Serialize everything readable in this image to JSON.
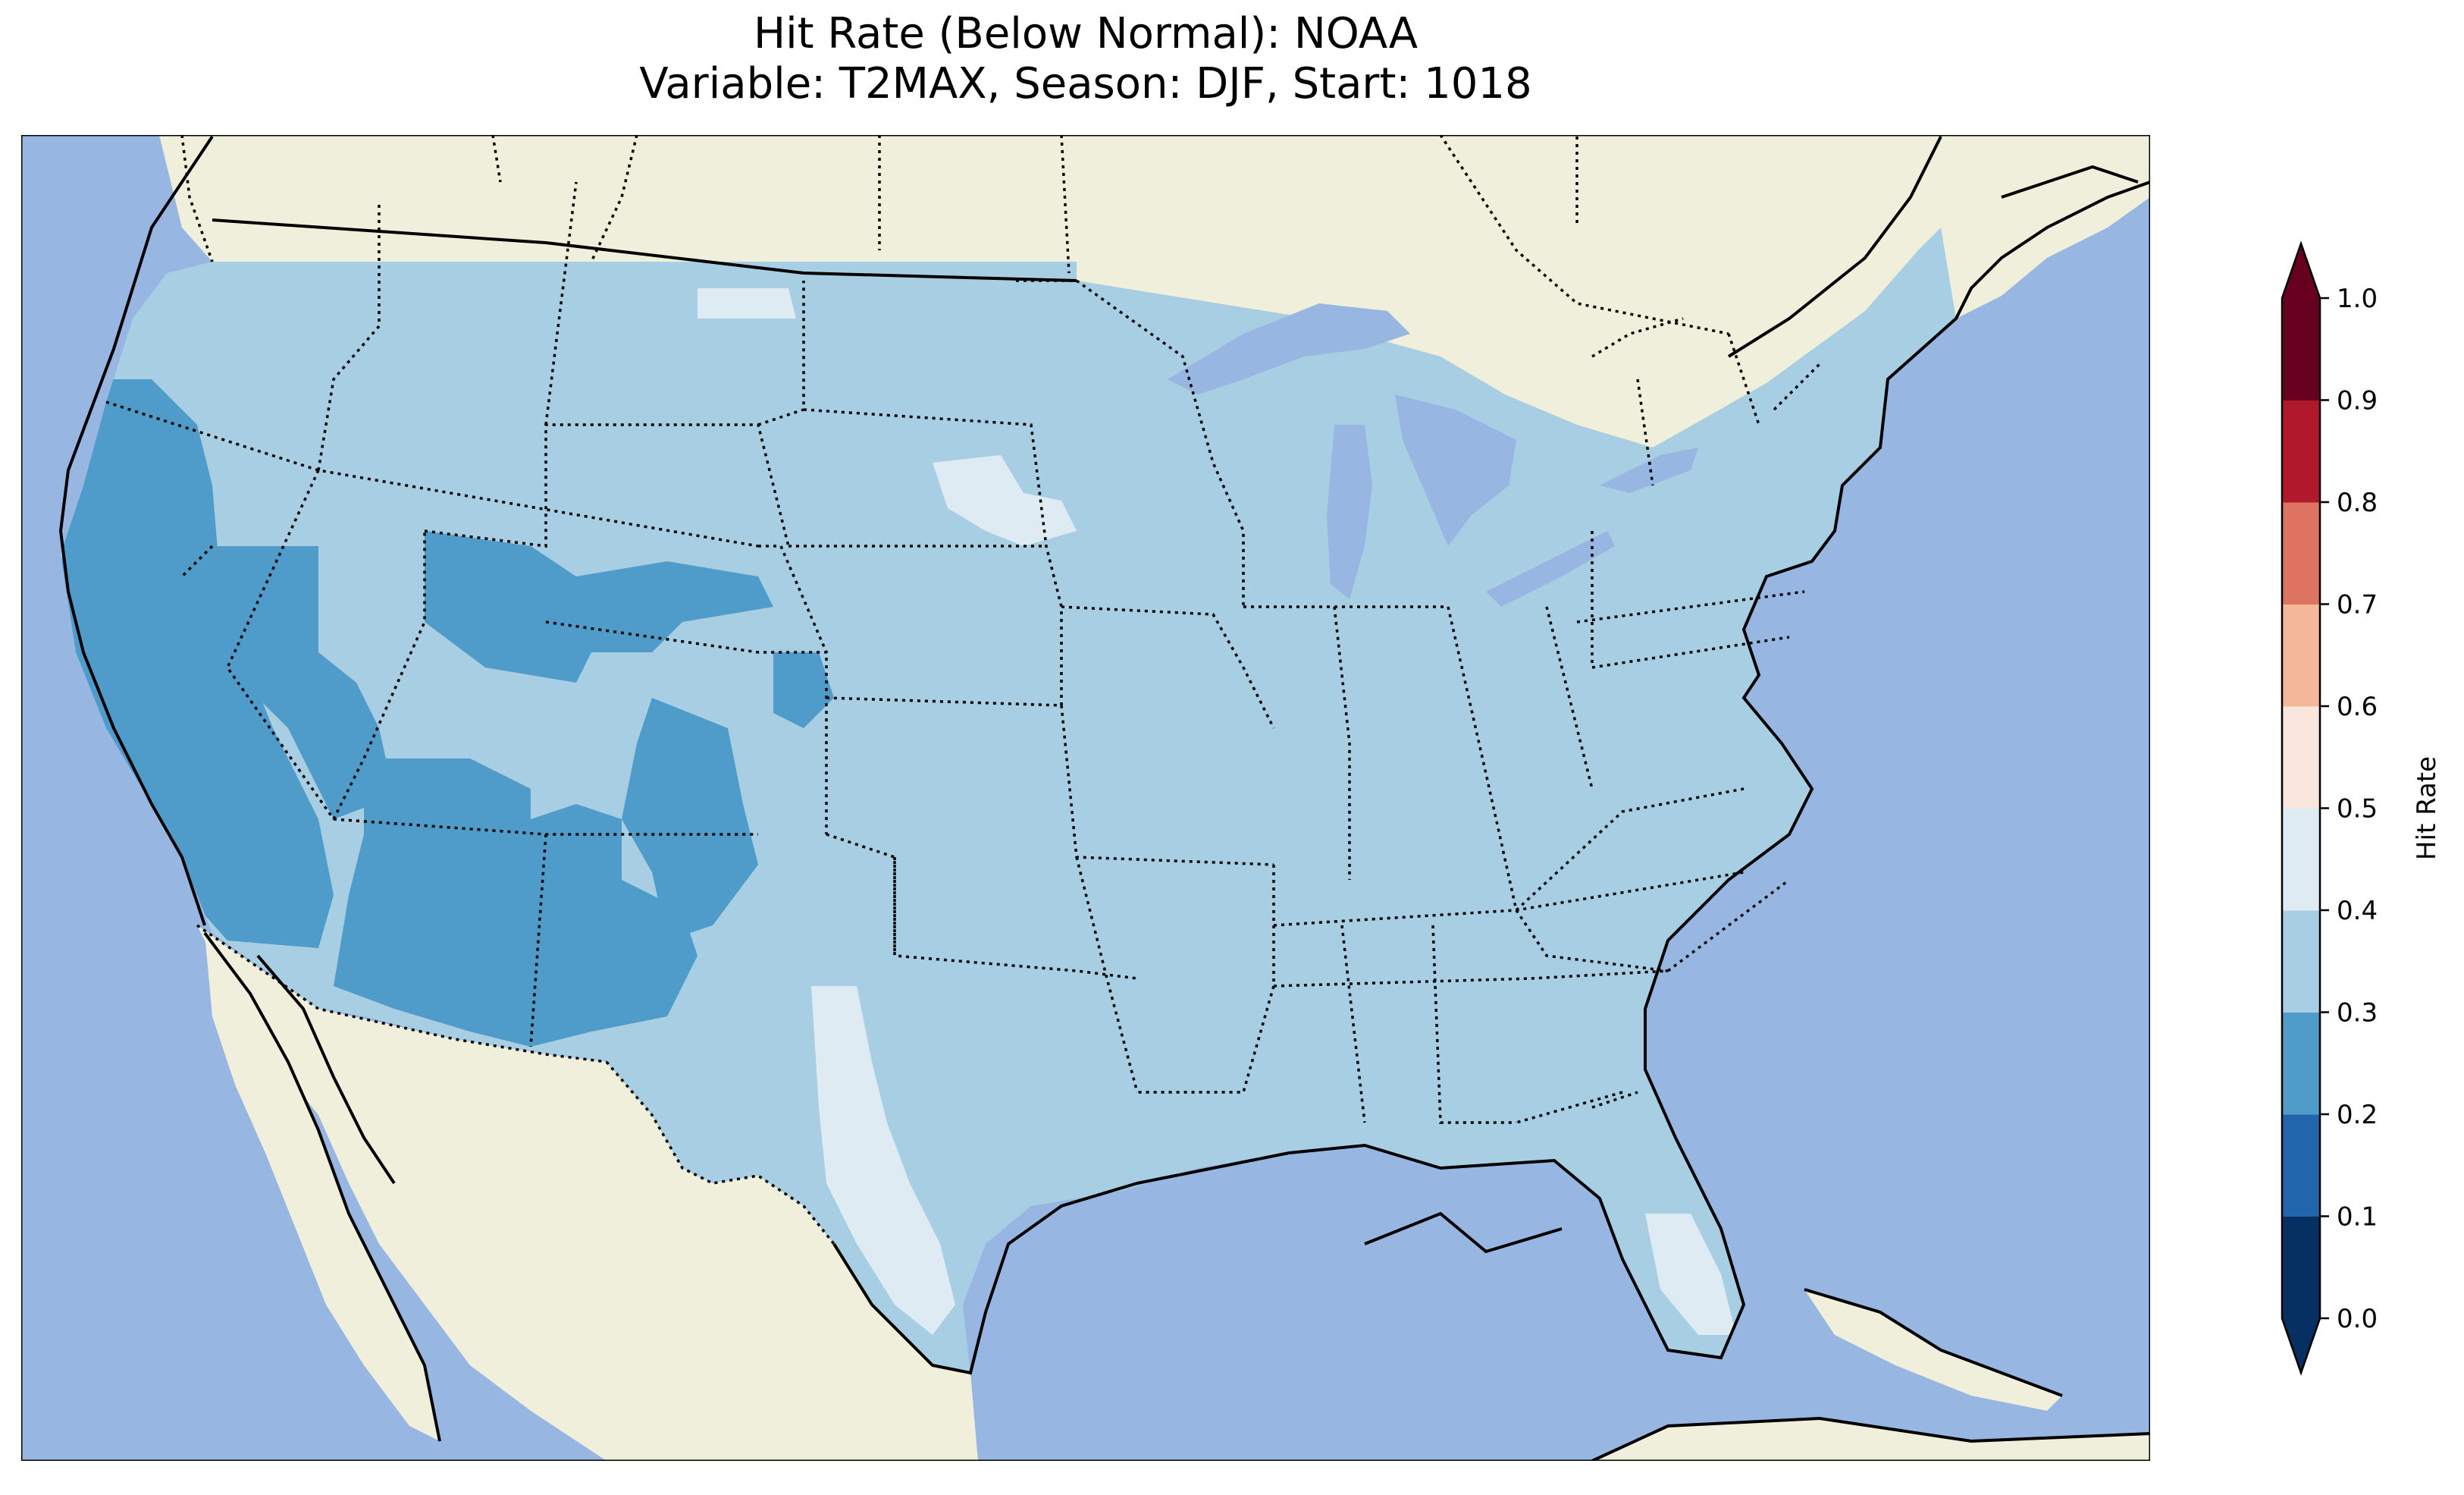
{
  "title": {
    "line1": "Hit Rate (Below Normal): NOAA",
    "line2": "Variable: T2MAX, Season: DJF, Start: 1018"
  },
  "map": {
    "colors": {
      "ocean": "#97b6e1",
      "land": "#efefdb",
      "lake": "#97b6e1",
      "coast": "#000000",
      "border": "#000000"
    }
  },
  "colorbar": {
    "label": "Hit Rate",
    "extend": "both",
    "bins": [
      {
        "from": 0.0,
        "to": 0.1,
        "color": "#053061"
      },
      {
        "from": 0.1,
        "to": 0.2,
        "color": "#2166ac"
      },
      {
        "from": 0.2,
        "to": 0.3,
        "color": "#4f9bc9"
      },
      {
        "from": 0.3,
        "to": 0.4,
        "color": "#a8cee3"
      },
      {
        "from": 0.4,
        "to": 0.5,
        "color": "#dfebf3"
      },
      {
        "from": 0.5,
        "to": 0.6,
        "color": "#f9e6dd"
      },
      {
        "from": 0.6,
        "to": 0.7,
        "color": "#f5b79a"
      },
      {
        "from": 0.7,
        "to": 0.8,
        "color": "#dd7360"
      },
      {
        "from": 0.8,
        "to": 0.9,
        "color": "#b2182b"
      },
      {
        "from": 0.9,
        "to": 1.0,
        "color": "#67001f"
      }
    ],
    "ticks": [
      "0.0",
      "0.1",
      "0.2",
      "0.3",
      "0.4",
      "0.5",
      "0.6",
      "0.7",
      "0.8",
      "0.9",
      "1.0"
    ]
  },
  "regions": [
    {
      "name": "west-coast",
      "value_bin": "0.2-0.3"
    },
    {
      "name": "southwest",
      "value_bin": "0.2-0.3"
    },
    {
      "name": "great-basin-rockies",
      "value_bin": "0.2-0.3"
    },
    {
      "name": "most-of-conus",
      "value_bin": "0.3-0.4"
    },
    {
      "name": "south-texas",
      "value_bin": "0.4-0.5"
    },
    {
      "name": "south-dakota",
      "value_bin": "0.4-0.5"
    },
    {
      "name": "south-florida",
      "value_bin": "0.4-0.5"
    },
    {
      "name": "northern-montana",
      "value_bin": "0.4-0.5"
    }
  ]
}
